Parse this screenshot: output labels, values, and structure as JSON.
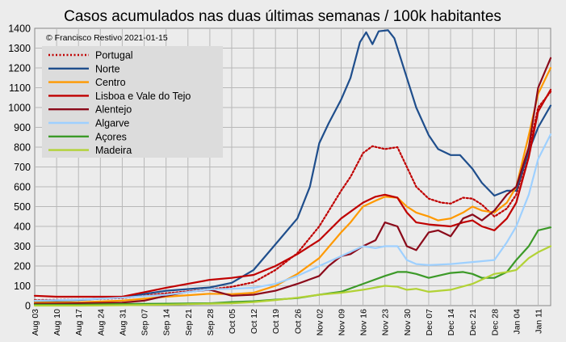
{
  "chart_data": {
    "type": "line",
    "title": "Casos acumulados nas duas últimas semanas / 100k habitantes",
    "credit": "© Francisco Restivo 2021-01-15",
    "xlabel": "",
    "ylabel": "",
    "ylim": [
      0,
      1400
    ],
    "yticks": [
      0,
      100,
      200,
      300,
      400,
      500,
      600,
      700,
      800,
      900,
      1000,
      1100,
      1200,
      1300,
      1400
    ],
    "x_range": [
      "2020-08-03",
      "2021-01-15"
    ],
    "xtick_labels": [
      "Aug 03",
      "Aug 10",
      "Aug 17",
      "Aug 24",
      "Aug 31",
      "Sep 07",
      "Sep 14",
      "Sep 21",
      "Sep 28",
      "Oct 05",
      "Oct 12",
      "Oct 19",
      "Oct 26",
      "Nov 02",
      "Nov 09",
      "Nov 16",
      "Nov 23",
      "Nov 30",
      "Dec 07",
      "Dec 14",
      "Dec 21",
      "Dec 28",
      "Jan 04",
      "Jan 11"
    ],
    "grid": true,
    "legend_position": "top-left",
    "series": [
      {
        "name": "Portugal",
        "color": "#c00000",
        "dash": "dotted",
        "points": [
          [
            "2020-08-03",
            28
          ],
          [
            "2020-08-17",
            30
          ],
          [
            "2020-08-31",
            38
          ],
          [
            "2020-09-14",
            62
          ],
          [
            "2020-09-28",
            82
          ],
          [
            "2020-10-05",
            95
          ],
          [
            "2020-10-12",
            118
          ],
          [
            "2020-10-19",
            180
          ],
          [
            "2020-10-26",
            265
          ],
          [
            "2020-11-02",
            400
          ],
          [
            "2020-11-09",
            580
          ],
          [
            "2020-11-12",
            650
          ],
          [
            "2020-11-16",
            770
          ],
          [
            "2020-11-19",
            805
          ],
          [
            "2020-11-23",
            790
          ],
          [
            "2020-11-27",
            800
          ],
          [
            "2020-11-30",
            700
          ],
          [
            "2020-12-03",
            600
          ],
          [
            "2020-12-07",
            540
          ],
          [
            "2020-12-11",
            520
          ],
          [
            "2020-12-14",
            515
          ],
          [
            "2020-12-18",
            545
          ],
          [
            "2020-12-21",
            540
          ],
          [
            "2020-12-24",
            510
          ],
          [
            "2020-12-28",
            450
          ],
          [
            "2021-01-01",
            490
          ],
          [
            "2021-01-04",
            560
          ],
          [
            "2021-01-08",
            780
          ],
          [
            "2021-01-11",
            1000
          ],
          [
            "2021-01-15",
            1080
          ]
        ]
      },
      {
        "name": "Norte",
        "color": "#1f4e8c",
        "points": [
          [
            "2020-08-03",
            22
          ],
          [
            "2020-08-17",
            28
          ],
          [
            "2020-08-31",
            42
          ],
          [
            "2020-09-14",
            75
          ],
          [
            "2020-09-28",
            92
          ],
          [
            "2020-10-05",
            115
          ],
          [
            "2020-10-12",
            180
          ],
          [
            "2020-10-19",
            310
          ],
          [
            "2020-10-26",
            440
          ],
          [
            "2020-10-30",
            600
          ],
          [
            "2020-11-02",
            820
          ],
          [
            "2020-11-05",
            920
          ],
          [
            "2020-11-09",
            1040
          ],
          [
            "2020-11-12",
            1150
          ],
          [
            "2020-11-15",
            1330
          ],
          [
            "2020-11-17",
            1380
          ],
          [
            "2020-11-19",
            1320
          ],
          [
            "2020-11-21",
            1385
          ],
          [
            "2020-11-24",
            1390
          ],
          [
            "2020-11-26",
            1350
          ],
          [
            "2020-11-30",
            1150
          ],
          [
            "2020-12-03",
            1000
          ],
          [
            "2020-12-07",
            860
          ],
          [
            "2020-12-10",
            790
          ],
          [
            "2020-12-14",
            760
          ],
          [
            "2020-12-17",
            760
          ],
          [
            "2020-12-21",
            690
          ],
          [
            "2020-12-24",
            620
          ],
          [
            "2020-12-28",
            555
          ],
          [
            "2021-01-01",
            580
          ],
          [
            "2021-01-04",
            580
          ],
          [
            "2021-01-08",
            780
          ],
          [
            "2021-01-11",
            900
          ],
          [
            "2021-01-15",
            1010
          ]
        ]
      },
      {
        "name": "Centro",
        "color": "#ff9900",
        "points": [
          [
            "2020-08-03",
            15
          ],
          [
            "2020-08-17",
            17
          ],
          [
            "2020-08-31",
            25
          ],
          [
            "2020-09-14",
            45
          ],
          [
            "2020-09-28",
            60
          ],
          [
            "2020-10-05",
            58
          ],
          [
            "2020-10-12",
            65
          ],
          [
            "2020-10-19",
            100
          ],
          [
            "2020-10-26",
            160
          ],
          [
            "2020-11-02",
            240
          ],
          [
            "2020-11-09",
            370
          ],
          [
            "2020-11-12",
            420
          ],
          [
            "2020-11-16",
            500
          ],
          [
            "2020-11-20",
            530
          ],
          [
            "2020-11-23",
            550
          ],
          [
            "2020-11-27",
            545
          ],
          [
            "2020-11-30",
            500
          ],
          [
            "2020-12-03",
            470
          ],
          [
            "2020-12-07",
            450
          ],
          [
            "2020-12-10",
            430
          ],
          [
            "2020-12-14",
            440
          ],
          [
            "2020-12-18",
            470
          ],
          [
            "2020-12-21",
            500
          ],
          [
            "2020-12-24",
            480
          ],
          [
            "2020-12-28",
            470
          ],
          [
            "2021-01-01",
            520
          ],
          [
            "2021-01-04",
            600
          ],
          [
            "2021-01-08",
            860
          ],
          [
            "2021-01-11",
            1070
          ],
          [
            "2021-01-15",
            1200
          ]
        ]
      },
      {
        "name": "Lisboa e Vale do Tejo",
        "color": "#c00000",
        "points": [
          [
            "2020-08-03",
            50
          ],
          [
            "2020-08-10",
            45
          ],
          [
            "2020-08-17",
            45
          ],
          [
            "2020-08-31",
            45
          ],
          [
            "2020-09-14",
            90
          ],
          [
            "2020-09-28",
            130
          ],
          [
            "2020-10-05",
            140
          ],
          [
            "2020-10-12",
            155
          ],
          [
            "2020-10-19",
            200
          ],
          [
            "2020-10-26",
            260
          ],
          [
            "2020-11-02",
            330
          ],
          [
            "2020-11-09",
            440
          ],
          [
            "2020-11-16",
            520
          ],
          [
            "2020-11-20",
            550
          ],
          [
            "2020-11-23",
            560
          ],
          [
            "2020-11-27",
            545
          ],
          [
            "2020-11-30",
            470
          ],
          [
            "2020-12-03",
            420
          ],
          [
            "2020-12-07",
            410
          ],
          [
            "2020-12-14",
            400
          ],
          [
            "2020-12-18",
            420
          ],
          [
            "2020-12-21",
            430
          ],
          [
            "2020-12-24",
            400
          ],
          [
            "2020-12-28",
            380
          ],
          [
            "2021-01-01",
            440
          ],
          [
            "2021-01-04",
            520
          ],
          [
            "2021-01-08",
            750
          ],
          [
            "2021-01-11",
            980
          ],
          [
            "2021-01-15",
            1090
          ]
        ]
      },
      {
        "name": "Alentejo",
        "color": "#8b0a1a",
        "points": [
          [
            "2020-08-03",
            10
          ],
          [
            "2020-08-17",
            12
          ],
          [
            "2020-08-31",
            15
          ],
          [
            "2020-09-07",
            25
          ],
          [
            "2020-09-14",
            50
          ],
          [
            "2020-09-21",
            70
          ],
          [
            "2020-09-28",
            80
          ],
          [
            "2020-10-05",
            50
          ],
          [
            "2020-10-12",
            55
          ],
          [
            "2020-10-19",
            75
          ],
          [
            "2020-10-26",
            110
          ],
          [
            "2020-11-02",
            150
          ],
          [
            "2020-11-05",
            200
          ],
          [
            "2020-11-09",
            250
          ],
          [
            "2020-11-12",
            260
          ],
          [
            "2020-11-16",
            300
          ],
          [
            "2020-11-20",
            330
          ],
          [
            "2020-11-23",
            420
          ],
          [
            "2020-11-27",
            400
          ],
          [
            "2020-11-30",
            300
          ],
          [
            "2020-12-03",
            280
          ],
          [
            "2020-12-07",
            370
          ],
          [
            "2020-12-10",
            380
          ],
          [
            "2020-12-14",
            350
          ],
          [
            "2020-12-18",
            440
          ],
          [
            "2020-12-21",
            460
          ],
          [
            "2020-12-24",
            430
          ],
          [
            "2020-12-28",
            480
          ],
          [
            "2021-01-01",
            560
          ],
          [
            "2021-01-04",
            600
          ],
          [
            "2021-01-08",
            800
          ],
          [
            "2021-01-11",
            1100
          ],
          [
            "2021-01-15",
            1250
          ]
        ]
      },
      {
        "name": "Algarve",
        "color": "#9ed0ff",
        "points": [
          [
            "2020-08-03",
            25
          ],
          [
            "2020-08-17",
            30
          ],
          [
            "2020-08-31",
            40
          ],
          [
            "2020-09-14",
            55
          ],
          [
            "2020-09-28",
            82
          ],
          [
            "2020-10-05",
            85
          ],
          [
            "2020-10-12",
            90
          ],
          [
            "2020-10-19",
            110
          ],
          [
            "2020-10-26",
            150
          ],
          [
            "2020-11-02",
            200
          ],
          [
            "2020-11-09",
            250
          ],
          [
            "2020-11-16",
            300
          ],
          [
            "2020-11-20",
            290
          ],
          [
            "2020-11-23",
            300
          ],
          [
            "2020-11-27",
            300
          ],
          [
            "2020-11-30",
            230
          ],
          [
            "2020-12-03",
            210
          ],
          [
            "2020-12-07",
            205
          ],
          [
            "2020-12-14",
            210
          ],
          [
            "2020-12-21",
            220
          ],
          [
            "2020-12-28",
            230
          ],
          [
            "2021-01-01",
            320
          ],
          [
            "2021-01-04",
            400
          ],
          [
            "2021-01-08",
            560
          ],
          [
            "2021-01-11",
            740
          ],
          [
            "2021-01-15",
            865
          ]
        ]
      },
      {
        "name": "Açores",
        "color": "#3c9a28",
        "points": [
          [
            "2020-08-03",
            5
          ],
          [
            "2020-08-17",
            5
          ],
          [
            "2020-08-31",
            8
          ],
          [
            "2020-09-14",
            10
          ],
          [
            "2020-09-28",
            12
          ],
          [
            "2020-10-05",
            18
          ],
          [
            "2020-10-12",
            22
          ],
          [
            "2020-10-19",
            30
          ],
          [
            "2020-10-26",
            38
          ],
          [
            "2020-11-02",
            55
          ],
          [
            "2020-11-09",
            70
          ],
          [
            "2020-11-16",
            110
          ],
          [
            "2020-11-23",
            150
          ],
          [
            "2020-11-27",
            170
          ],
          [
            "2020-11-30",
            170
          ],
          [
            "2020-12-03",
            160
          ],
          [
            "2020-12-07",
            140
          ],
          [
            "2020-12-14",
            165
          ],
          [
            "2020-12-18",
            170
          ],
          [
            "2020-12-21",
            160
          ],
          [
            "2020-12-24",
            140
          ],
          [
            "2020-12-28",
            140
          ],
          [
            "2021-01-01",
            170
          ],
          [
            "2021-01-04",
            230
          ],
          [
            "2021-01-08",
            300
          ],
          [
            "2021-01-11",
            380
          ],
          [
            "2021-01-15",
            395
          ]
        ]
      },
      {
        "name": "Madeira",
        "color": "#b2d235",
        "points": [
          [
            "2020-08-03",
            0
          ],
          [
            "2020-08-17",
            0
          ],
          [
            "2020-08-31",
            2
          ],
          [
            "2020-09-14",
            5
          ],
          [
            "2020-09-28",
            10
          ],
          [
            "2020-10-05",
            12
          ],
          [
            "2020-10-12",
            18
          ],
          [
            "2020-10-19",
            28
          ],
          [
            "2020-10-26",
            40
          ],
          [
            "2020-11-02",
            55
          ],
          [
            "2020-11-09",
            65
          ],
          [
            "2020-11-16",
            80
          ],
          [
            "2020-11-23",
            100
          ],
          [
            "2020-11-27",
            95
          ],
          [
            "2020-11-30",
            80
          ],
          [
            "2020-12-03",
            85
          ],
          [
            "2020-12-07",
            70
          ],
          [
            "2020-12-14",
            80
          ],
          [
            "2020-12-21",
            110
          ],
          [
            "2020-12-28",
            160
          ],
          [
            "2021-01-01",
            170
          ],
          [
            "2021-01-04",
            180
          ],
          [
            "2021-01-08",
            240
          ],
          [
            "2021-01-11",
            270
          ],
          [
            "2021-01-15",
            300
          ]
        ]
      }
    ]
  }
}
